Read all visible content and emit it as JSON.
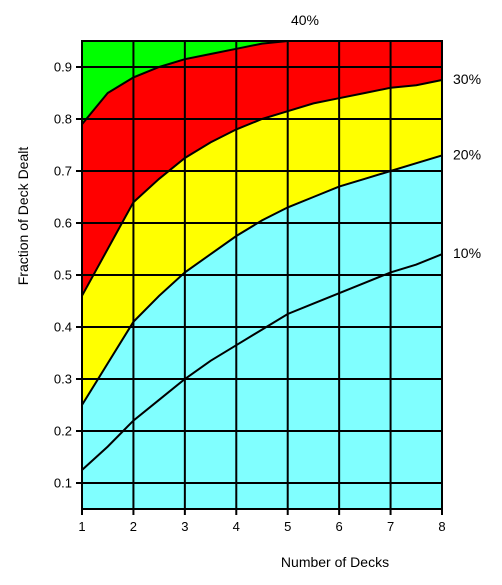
{
  "chart_data": {
    "type": "area",
    "title": "",
    "xlabel": "Number of Decks",
    "ylabel": "Fraction of Deck Dealt",
    "xlim": [
      1,
      8
    ],
    "ylim": [
      0.05,
      0.95
    ],
    "x_ticks": [
      "1",
      "2",
      "3",
      "4",
      "5",
      "6",
      "7",
      "8"
    ],
    "y_ticks": [
      "0.1",
      "0.2",
      "0.3",
      "0.4",
      "0.5",
      "0.6",
      "0.7",
      "0.8",
      "0.9"
    ],
    "grid": true,
    "x": [
      1,
      1.5,
      2,
      2.5,
      3,
      3.5,
      4,
      4.5,
      5,
      5.5,
      6,
      6.5,
      7,
      7.5,
      8
    ],
    "series": [
      {
        "name": "10%",
        "color": "#80ffff",
        "values": [
          0.125,
          0.17,
          0.22,
          0.26,
          0.3,
          0.335,
          0.365,
          0.395,
          0.425,
          0.445,
          0.465,
          0.485,
          0.505,
          0.52,
          0.54
        ]
      },
      {
        "name": "20%",
        "color": "#ffff00",
        "values": [
          0.25,
          0.33,
          0.41,
          0.46,
          0.505,
          0.54,
          0.575,
          0.605,
          0.63,
          0.65,
          0.67,
          0.685,
          0.7,
          0.715,
          0.73
        ]
      },
      {
        "name": "30%",
        "color": "#0000ff",
        "values": [
          0.46,
          0.55,
          0.64,
          0.685,
          0.725,
          0.755,
          0.78,
          0.8,
          0.815,
          0.83,
          0.84,
          0.85,
          0.86,
          0.865,
          0.875
        ]
      },
      {
        "name": "40%",
        "color": "#ff0000",
        "values": [
          0.79,
          0.85,
          0.88,
          0.9,
          0.915,
          0.925,
          0.935,
          0.945,
          0.95,
          0.95,
          0.95,
          0.95,
          0.95,
          0.95,
          0.95
        ]
      }
    ],
    "top_fill_color": "#00ff00",
    "base_fill_color": "#80ffff",
    "region_labels": [
      {
        "text": "40%",
        "series": 3
      },
      {
        "text": "30%",
        "series": 2
      },
      {
        "text": "20%",
        "series": 1
      },
      {
        "text": "10%",
        "series": 0
      }
    ]
  }
}
